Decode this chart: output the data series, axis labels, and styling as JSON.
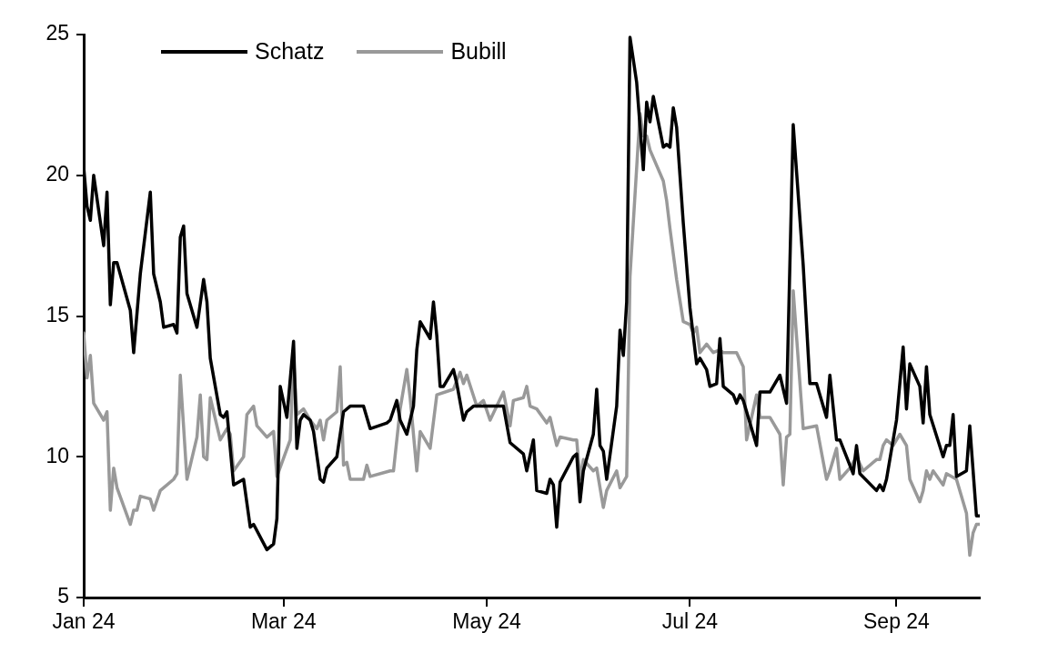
{
  "chart_data": {
    "type": "line",
    "marker": "none",
    "legend": "top left",
    "xlim": [
      "2024-01-01",
      "2024-09-26"
    ],
    "xticks": [
      {
        "value": "2024-01-01",
        "label": "Jan 24"
      },
      {
        "value": "2024-03-01",
        "label": "Mar 24"
      },
      {
        "value": "2024-05-01",
        "label": "May 24"
      },
      {
        "value": "2024-07-01",
        "label": "Jul 24"
      },
      {
        "value": "2024-09-01",
        "label": "Sep 24"
      }
    ],
    "ylim": [
      5,
      25
    ],
    "yticks": [
      5,
      10,
      15,
      20,
      25
    ],
    "series": [
      {
        "name": "Schatz",
        "color": "#000000",
        "x": [
          "2024-01-01",
          "2024-01-02",
          "2024-01-03",
          "2024-01-04",
          "2024-01-07",
          "2024-01-08",
          "2024-01-09",
          "2024-01-10",
          "2024-01-11",
          "2024-01-15",
          "2024-01-16",
          "2024-01-18",
          "2024-01-21",
          "2024-01-22",
          "2024-01-24",
          "2024-01-25",
          "2024-01-28",
          "2024-01-29",
          "2024-01-30",
          "2024-01-31",
          "2024-02-01",
          "2024-02-04",
          "2024-02-06",
          "2024-02-07",
          "2024-02-08",
          "2024-02-11",
          "2024-02-12",
          "2024-02-13",
          "2024-02-15",
          "2024-02-18",
          "2024-02-20",
          "2024-02-21",
          "2024-02-25",
          "2024-02-27",
          "2024-02-28",
          "2024-02-29",
          "2024-03-02",
          "2024-03-04",
          "2024-03-05",
          "2024-03-06",
          "2024-03-07",
          "2024-03-09",
          "2024-03-10",
          "2024-03-12",
          "2024-03-13",
          "2024-03-14",
          "2024-03-17",
          "2024-03-19",
          "2024-03-21",
          "2024-03-25",
          "2024-03-27",
          "2024-04-01",
          "2024-04-02",
          "2024-04-04",
          "2024-04-05",
          "2024-04-07",
          "2024-04-09",
          "2024-04-10",
          "2024-04-11",
          "2024-04-14",
          "2024-04-15",
          "2024-04-16",
          "2024-04-17",
          "2024-04-18",
          "2024-04-21",
          "2024-04-22",
          "2024-04-24",
          "2024-04-25",
          "2024-04-27",
          "2024-05-02",
          "2024-05-06",
          "2024-05-08",
          "2024-05-12",
          "2024-05-13",
          "2024-05-15",
          "2024-05-16",
          "2024-05-19",
          "2024-05-20",
          "2024-05-21",
          "2024-05-22",
          "2024-05-23",
          "2024-05-27",
          "2024-05-28",
          "2024-05-29",
          "2024-05-30",
          "2024-06-02",
          "2024-06-03",
          "2024-06-04",
          "2024-06-05",
          "2024-06-06",
          "2024-06-09",
          "2024-06-10",
          "2024-06-11",
          "2024-06-12",
          "2024-06-13",
          "2024-06-15",
          "2024-06-17",
          "2024-06-18",
          "2024-06-19",
          "2024-06-20",
          "2024-06-23",
          "2024-06-24",
          "2024-06-25",
          "2024-06-26",
          "2024-06-27",
          "2024-06-29",
          "2024-07-01",
          "2024-07-03",
          "2024-07-04",
          "2024-07-06",
          "2024-07-07",
          "2024-07-09",
          "2024-07-10",
          "2024-07-11",
          "2024-07-14",
          "2024-07-15",
          "2024-07-16",
          "2024-07-17",
          "2024-07-21",
          "2024-07-22",
          "2024-07-25",
          "2024-07-28",
          "2024-07-30",
          "2024-08-01",
          "2024-08-04",
          "2024-08-06",
          "2024-08-08",
          "2024-08-11",
          "2024-08-12",
          "2024-08-14",
          "2024-08-15",
          "2024-08-19",
          "2024-08-20",
          "2024-08-21",
          "2024-08-26",
          "2024-08-27",
          "2024-08-28",
          "2024-08-29",
          "2024-09-01",
          "2024-09-03",
          "2024-09-04",
          "2024-09-05",
          "2024-09-08",
          "2024-09-09",
          "2024-09-10",
          "2024-09-11",
          "2024-09-15",
          "2024-09-16",
          "2024-09-17",
          "2024-09-18",
          "2024-09-19",
          "2024-09-22",
          "2024-09-23",
          "2024-09-25",
          "2024-09-26"
        ],
        "values": [
          20.3,
          18.9,
          18.4,
          20.0,
          17.5,
          19.4,
          15.4,
          16.9,
          16.9,
          15.2,
          13.7,
          16.5,
          19.4,
          16.5,
          15.5,
          14.6,
          14.7,
          14.4,
          17.8,
          18.2,
          15.8,
          14.6,
          16.3,
          15.5,
          13.5,
          11.5,
          11.4,
          11.6,
          9.0,
          9.2,
          7.5,
          7.6,
          6.7,
          6.9,
          7.8,
          12.5,
          11.4,
          14.1,
          10.3,
          11.3,
          11.5,
          11.3,
          10.9,
          9.2,
          9.1,
          9.6,
          10.0,
          11.6,
          11.8,
          11.8,
          11.0,
          11.2,
          11.3,
          12.0,
          11.3,
          10.8,
          11.8,
          13.8,
          14.8,
          14.2,
          15.5,
          14.3,
          12.5,
          12.5,
          13.1,
          12.6,
          11.3,
          11.6,
          11.8,
          11.8,
          11.8,
          10.5,
          10.1,
          9.5,
          10.6,
          8.8,
          8.7,
          9.2,
          9.0,
          7.5,
          9.1,
          10.0,
          10.1,
          8.4,
          9.5,
          10.8,
          12.4,
          10.4,
          10.2,
          9.2,
          11.8,
          14.5,
          13.6,
          15.5,
          24.9,
          23.3,
          20.2,
          22.6,
          21.9,
          22.8,
          21.0,
          21.1,
          21.0,
          22.4,
          21.7,
          18.3,
          15.3,
          13.3,
          13.5,
          13.1,
          12.5,
          12.6,
          14.2,
          12.5,
          12.2,
          11.9,
          12.2,
          12.0,
          10.4,
          12.3,
          12.3,
          12.9,
          11.9,
          21.8,
          16.8,
          12.6,
          12.6,
          11.4,
          12.9,
          10.6,
          10.6,
          9.4,
          10.4,
          9.4,
          8.8,
          9.0,
          8.8,
          9.2,
          11.3,
          13.9,
          11.7,
          13.3,
          12.5,
          11.2,
          13.2,
          11.5,
          10.0,
          10.4,
          10.4,
          11.5,
          9.3,
          9.5,
          11.1,
          7.9,
          7.9
        ]
      },
      {
        "name": "Bubill",
        "color": "#999999",
        "x": [
          "2024-01-01",
          "2024-01-02",
          "2024-01-03",
          "2024-01-04",
          "2024-01-07",
          "2024-01-08",
          "2024-01-09",
          "2024-01-10",
          "2024-01-11",
          "2024-01-15",
          "2024-01-16",
          "2024-01-17",
          "2024-01-18",
          "2024-01-21",
          "2024-01-22",
          "2024-01-24",
          "2024-01-28",
          "2024-01-29",
          "2024-01-30",
          "2024-02-01",
          "2024-02-04",
          "2024-02-05",
          "2024-02-06",
          "2024-02-07",
          "2024-02-08",
          "2024-02-11",
          "2024-02-13",
          "2024-02-14",
          "2024-02-15",
          "2024-02-18",
          "2024-02-19",
          "2024-02-21",
          "2024-02-22",
          "2024-02-25",
          "2024-02-27",
          "2024-02-28",
          "2024-03-03",
          "2024-03-04",
          "2024-03-05",
          "2024-03-07",
          "2024-03-09",
          "2024-03-11",
          "2024-03-12",
          "2024-03-13",
          "2024-03-14",
          "2024-03-17",
          "2024-03-18",
          "2024-03-19",
          "2024-03-20",
          "2024-03-21",
          "2024-03-25",
          "2024-03-26",
          "2024-03-27",
          "2024-04-02",
          "2024-04-03",
          "2024-04-05",
          "2024-04-07",
          "2024-04-08",
          "2024-04-10",
          "2024-04-11",
          "2024-04-14",
          "2024-04-16",
          "2024-04-21",
          "2024-04-23",
          "2024-04-24",
          "2024-04-25",
          "2024-04-28",
          "2024-04-30",
          "2024-05-02",
          "2024-05-06",
          "2024-05-08",
          "2024-05-09",
          "2024-05-12",
          "2024-05-13",
          "2024-05-14",
          "2024-05-16",
          "2024-05-19",
          "2024-05-20",
          "2024-05-22",
          "2024-05-23",
          "2024-05-27",
          "2024-05-28",
          "2024-05-29",
          "2024-05-30",
          "2024-06-02",
          "2024-06-03",
          "2024-06-05",
          "2024-06-06",
          "2024-06-09",
          "2024-06-10",
          "2024-06-12",
          "2024-06-13",
          "2024-06-16",
          "2024-06-17",
          "2024-06-18",
          "2024-06-19",
          "2024-06-23",
          "2024-06-24",
          "2024-06-25",
          "2024-06-27",
          "2024-06-29",
          "2024-07-01",
          "2024-07-02",
          "2024-07-03",
          "2024-07-04",
          "2024-07-06",
          "2024-07-08",
          "2024-07-10",
          "2024-07-11",
          "2024-07-14",
          "2024-07-15",
          "2024-07-17",
          "2024-07-18",
          "2024-07-21",
          "2024-07-22",
          "2024-07-25",
          "2024-07-28",
          "2024-07-29",
          "2024-07-30",
          "2024-07-31",
          "2024-08-01",
          "2024-08-04",
          "2024-08-08",
          "2024-08-11",
          "2024-08-12",
          "2024-08-14",
          "2024-08-15",
          "2024-08-18",
          "2024-08-20",
          "2024-08-22",
          "2024-08-26",
          "2024-08-27",
          "2024-08-28",
          "2024-08-29",
          "2024-08-31",
          "2024-09-02",
          "2024-09-04",
          "2024-09-05",
          "2024-09-08",
          "2024-09-09",
          "2024-09-10",
          "2024-09-11",
          "2024-09-12",
          "2024-09-15",
          "2024-09-16",
          "2024-09-19",
          "2024-09-22",
          "2024-09-23",
          "2024-09-24",
          "2024-09-25",
          "2024-09-26"
        ],
        "values": [
          14.4,
          12.8,
          13.6,
          11.9,
          11.3,
          11.6,
          8.1,
          9.6,
          8.9,
          7.6,
          8.1,
          8.1,
          8.6,
          8.5,
          8.1,
          8.8,
          9.2,
          9.4,
          12.9,
          9.2,
          10.7,
          12.2,
          10.0,
          9.9,
          12.1,
          10.6,
          11.0,
          10.8,
          9.5,
          10.0,
          11.5,
          11.8,
          11.1,
          10.7,
          10.9,
          9.3,
          10.6,
          13.5,
          11.5,
          11.7,
          11.3,
          11.0,
          11.3,
          10.6,
          11.3,
          11.6,
          13.2,
          9.7,
          9.8,
          9.2,
          9.2,
          9.7,
          9.3,
          9.5,
          9.5,
          11.7,
          13.1,
          12.1,
          9.5,
          10.9,
          10.3,
          12.2,
          12.4,
          13.0,
          12.6,
          12.9,
          11.8,
          12.0,
          11.3,
          12.3,
          11.1,
          12.0,
          12.1,
          12.5,
          11.8,
          11.7,
          11.2,
          11.4,
          10.4,
          10.7,
          10.6,
          10.6,
          9.2,
          9.9,
          9.5,
          9.6,
          8.2,
          8.8,
          9.5,
          8.9,
          9.3,
          16.4,
          22.2,
          21.4,
          21.4,
          20.9,
          19.8,
          19.1,
          18.1,
          16.3,
          14.8,
          14.7,
          14.4,
          14.6,
          13.7,
          14.0,
          13.7,
          13.8,
          13.7,
          13.7,
          13.7,
          13.2,
          10.6,
          12.2,
          11.4,
          11.4,
          10.8,
          9.0,
          10.7,
          10.8,
          15.9,
          11.0,
          11.1,
          9.2,
          9.5,
          10.3,
          9.2,
          9.6,
          10.0,
          9.5,
          9.9,
          9.9,
          10.4,
          10.6,
          10.4,
          10.8,
          10.4,
          9.2,
          8.4,
          8.8,
          9.5,
          9.2,
          9.5,
          9.0,
          9.4,
          9.2,
          8.0,
          6.5,
          7.3,
          7.6,
          7.6
        ]
      }
    ]
  }
}
